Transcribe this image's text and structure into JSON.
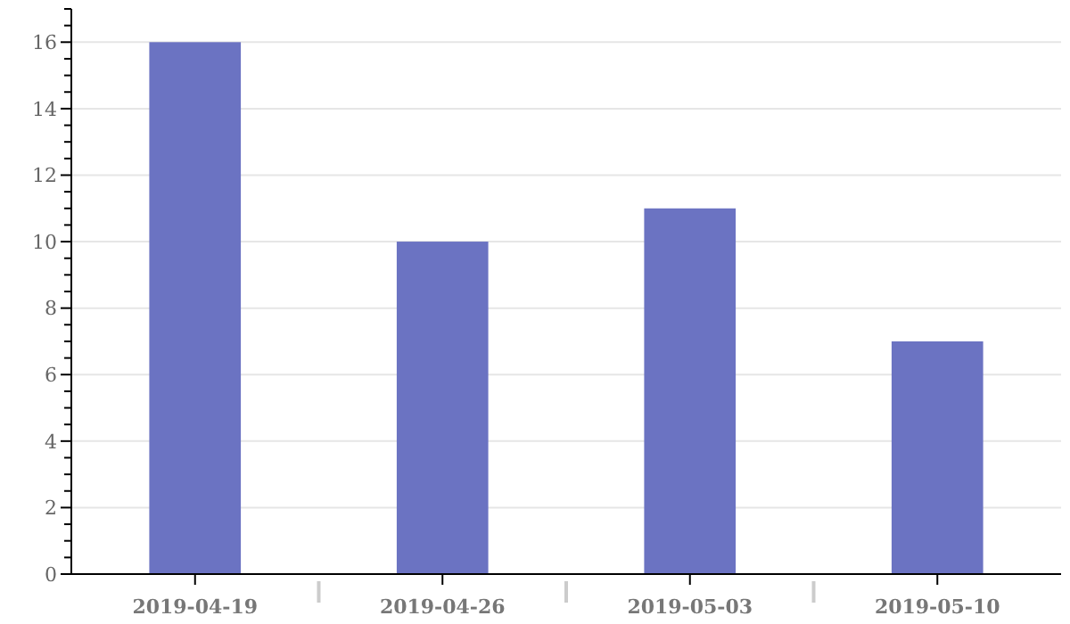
{
  "chart_data": {
    "type": "bar",
    "categories": [
      "2019-04-19",
      "2019-04-26",
      "2019-05-03",
      "2019-05-10"
    ],
    "values": [
      16,
      10,
      11,
      7
    ],
    "color": "#6b73c2",
    "ylim": [
      0,
      17
    ],
    "yticks": [
      0,
      {
        "value": 0.5,
        "label": null
      },
      {
        "value": 1,
        "label": null
      },
      {
        "value": 1.5,
        "label": null
      },
      2,
      {
        "value": 2.5,
        "label": null
      },
      {
        "value": 3,
        "label": null
      },
      {
        "value": 3.5,
        "label": null
      },
      4,
      {
        "value": 4.5,
        "label": null
      },
      {
        "value": 5,
        "label": null
      },
      {
        "value": 5.5,
        "label": null
      },
      6,
      {
        "value": 6.5,
        "label": null
      },
      {
        "value": 7,
        "label": null
      },
      {
        "value": 7.5,
        "label": null
      },
      8,
      {
        "value": 8.5,
        "label": null
      },
      {
        "value": 9,
        "label": null
      },
      {
        "value": 9.5,
        "label": null
      },
      10,
      {
        "value": 10.5,
        "label": null
      },
      {
        "value": 11,
        "label": null
      },
      {
        "value": 11.5,
        "label": null
      },
      12,
      {
        "value": 12.5,
        "label": null
      },
      {
        "value": 13,
        "label": null
      },
      {
        "value": 13.5,
        "label": null
      },
      14,
      {
        "value": 14.5,
        "label": null
      },
      {
        "value": 15,
        "label": null
      },
      {
        "value": 15.5,
        "label": null
      },
      16,
      {
        "value": 16.5,
        "label": null
      },
      {
        "value": 17,
        "label": null
      }
    ],
    "grid": "y"
  }
}
